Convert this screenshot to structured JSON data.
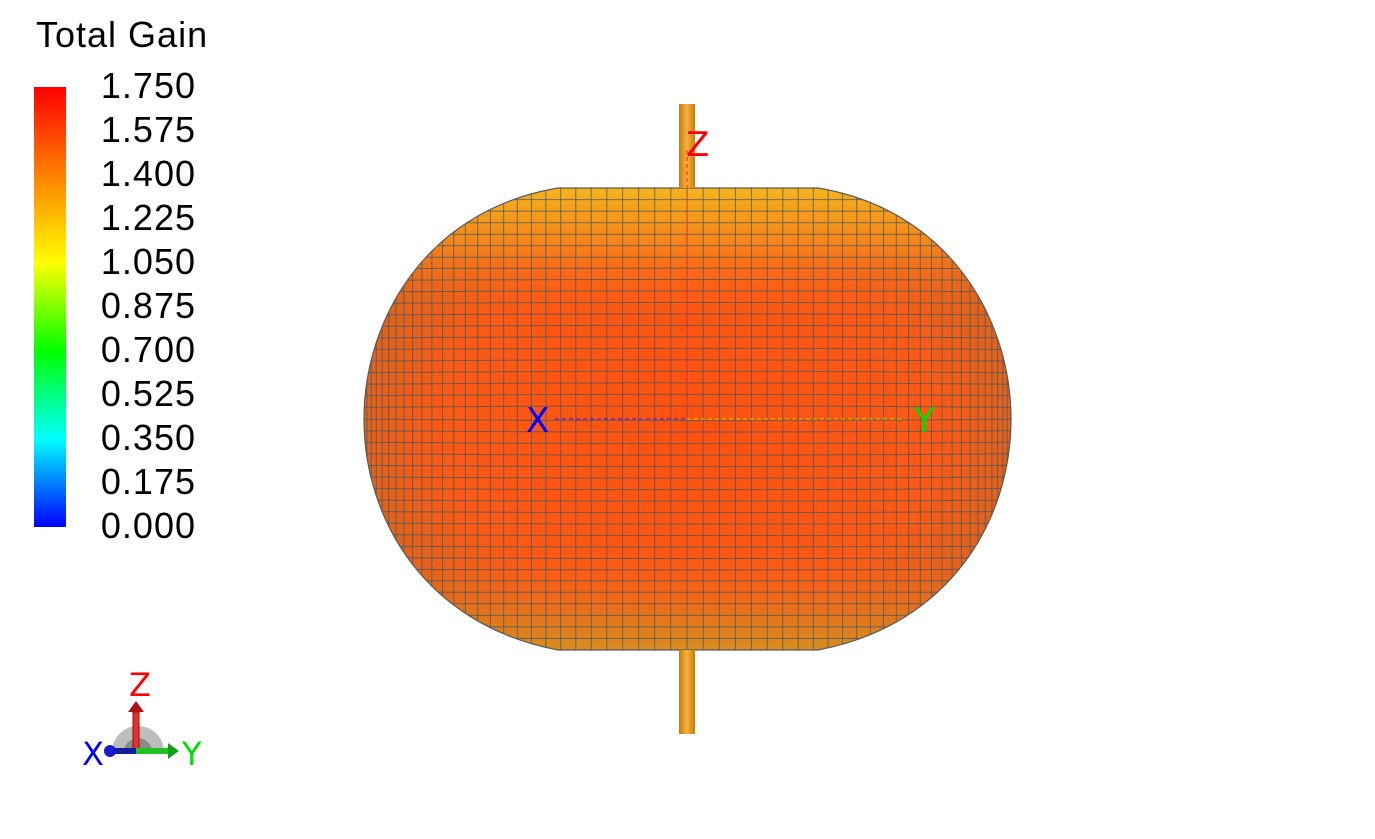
{
  "legend": {
    "title": "Total Gain",
    "ticks": [
      "1.750",
      "1.575",
      "1.400",
      "1.225",
      "1.050",
      "0.875",
      "0.700",
      "0.525",
      "0.350",
      "0.175",
      "0.000"
    ],
    "range": [
      0.0,
      1.75
    ],
    "colormap": [
      "#ff0000",
      "#ff8000",
      "#ffff00",
      "#00ff00",
      "#00ffff",
      "#0000ff"
    ]
  },
  "pattern": {
    "shape": "toroidal-gain-pattern",
    "surface_color": "#ff5a12",
    "top_color": "#f7a11a",
    "mesh_color": "#4a5560",
    "antenna_color": "#e89a1c"
  },
  "axes": {
    "x": {
      "label": "X",
      "color": "#0000ff"
    },
    "y": {
      "label": "Y",
      "color": "#00dd00"
    },
    "z": {
      "label": "Z",
      "color": "#ff0000"
    }
  },
  "triad": {
    "x": "X",
    "y": "Y",
    "z": "Z"
  }
}
